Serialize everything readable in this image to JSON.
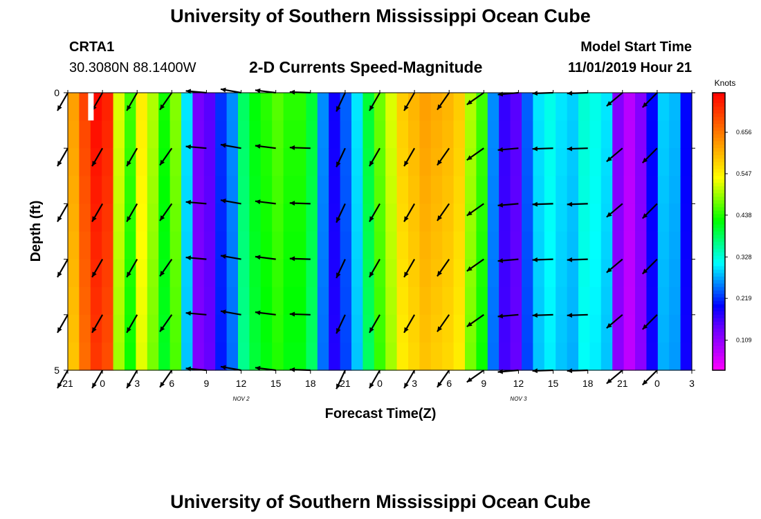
{
  "header": {
    "title_top": "University of Southern Mississippi Ocean Cube",
    "title_bottom": "University of Southern Mississippi Ocean Cube",
    "station_id": "CRTA1",
    "station_coords": "30.3080N 88.1400W",
    "chart_title": "2-D Currents Speed-Magnitude",
    "model_start_label": "Model Start Time",
    "model_start_value": "11/01/2019 Hour 21"
  },
  "colors": {
    "scale": [
      "#ff00ff",
      "#b000ff",
      "#6600ff",
      "#0000ff",
      "#0080ff",
      "#00ffff",
      "#00ff80",
      "#00ff00",
      "#80ff00",
      "#ffff00",
      "#ffc000",
      "#ff8000",
      "#ff4000",
      "#ff0000"
    ],
    "arrow": "#000000",
    "marker": "#ffffff"
  },
  "chart_data": {
    "type": "heatmap",
    "title": "2-D Currents Speed-Magnitude",
    "xlabel": "Forecast Time(Z)",
    "ylabel": "Depth (ft)",
    "colorbar_label": "Knots",
    "colorbar_ticks": [
      "0.109",
      "0.219",
      "0.328",
      "0.438",
      "0.547",
      "0.656"
    ],
    "colorbar_tick_values": [
      0.109,
      0.219,
      0.328,
      0.438,
      0.547,
      0.656
    ],
    "colorbar_range": [
      0.03,
      0.76
    ],
    "x_tick_labels": [
      "21",
      "0",
      "3",
      "6",
      "9",
      "12",
      "15",
      "18",
      "21",
      "0",
      "3",
      "6",
      "9",
      "12",
      "15",
      "18",
      "21",
      "0",
      "3"
    ],
    "x_range_hours": [
      0,
      54
    ],
    "day_labels": [
      {
        "label": "NOV 2",
        "hour": 15
      },
      {
        "label": "NOV 3",
        "hour": 39
      }
    ],
    "y_tick_labels": [
      "0",
      "5"
    ],
    "ylim": [
      0,
      5
    ],
    "depth_layers": 10,
    "speed_by_hour": [
      0.62,
      0.7,
      0.75,
      0.73,
      0.52,
      0.45,
      0.55,
      0.5,
      0.43,
      0.48,
      0.3,
      0.13,
      0.15,
      0.22,
      0.26,
      0.38,
      0.42,
      0.44,
      0.46,
      0.44,
      0.44,
      0.4,
      0.26,
      0.19,
      0.24,
      0.3,
      0.4,
      0.47,
      0.52,
      0.58,
      0.6,
      0.62,
      0.61,
      0.6,
      0.58,
      0.5,
      0.45,
      0.26,
      0.17,
      0.15,
      0.24,
      0.3,
      0.32,
      0.3,
      0.29,
      0.33,
      0.32,
      0.3,
      0.12,
      0.08,
      0.12,
      0.2,
      0.29,
      0.28,
      0.2
    ],
    "arrows": {
      "hours": [
        0,
        3,
        6,
        9,
        12,
        15,
        18,
        21,
        24,
        27,
        30,
        33,
        36,
        39,
        42,
        45,
        48,
        51
      ],
      "depths_ft": [
        0.0,
        1.0,
        2.0,
        3.0,
        4.0,
        5.0
      ],
      "direction_deg": [
        120,
        120,
        120,
        125,
        185,
        190,
        187,
        182,
        115,
        120,
        120,
        125,
        145,
        175,
        178,
        178,
        140,
        135
      ]
    },
    "marker": {
      "hour": 2,
      "depth_from": 0,
      "depth_to": 0.5
    }
  }
}
